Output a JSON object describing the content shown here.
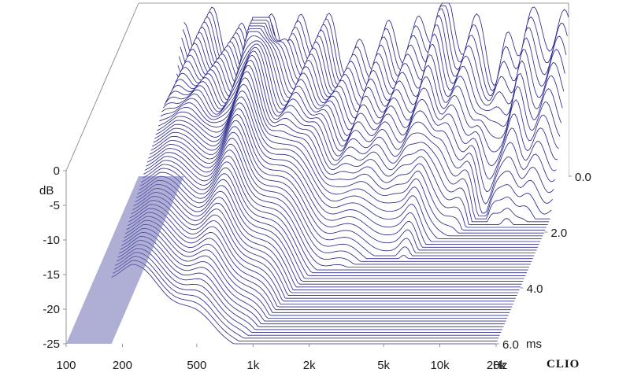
{
  "chart_data": {
    "type": "waterfall-3d",
    "brand": "CLIO",
    "x_axis": {
      "unit": "Hz",
      "scale": "log",
      "range": [
        100,
        20000
      ],
      "ticks": [
        {
          "value": 100,
          "label": "100"
        },
        {
          "value": 200,
          "label": "200"
        },
        {
          "value": 500,
          "label": "500"
        },
        {
          "value": 1000,
          "label": "1k"
        },
        {
          "value": 2000,
          "label": "2k"
        },
        {
          "value": 5000,
          "label": "5k"
        },
        {
          "value": 10000,
          "label": "10k"
        },
        {
          "value": 20000,
          "label": "20k"
        }
      ]
    },
    "y_axis": {
      "unit": "dB",
      "range": [
        -25,
        0
      ],
      "ticks": [
        {
          "value": 0,
          "label": "0"
        },
        {
          "value": -5,
          "label": "-5"
        },
        {
          "value": -10,
          "label": "-10"
        },
        {
          "value": -15,
          "label": "-15"
        },
        {
          "value": -20,
          "label": "-20"
        },
        {
          "value": -25,
          "label": "-25"
        }
      ]
    },
    "z_axis": {
      "unit": "ms",
      "range": [
        0,
        6
      ],
      "ticks": [
        {
          "value": 0,
          "label": "0.0"
        },
        {
          "value": 2,
          "label": "2.0"
        },
        {
          "value": 4,
          "label": "4.0"
        },
        {
          "value": 6,
          "label": "6.0"
        }
      ]
    },
    "slice_count": 60,
    "low_frequency_cutoff_hz": 175,
    "colors": {
      "line": "#2b2a8c",
      "floor": "#6e6db4",
      "frame": "#7a7a7a"
    }
  }
}
